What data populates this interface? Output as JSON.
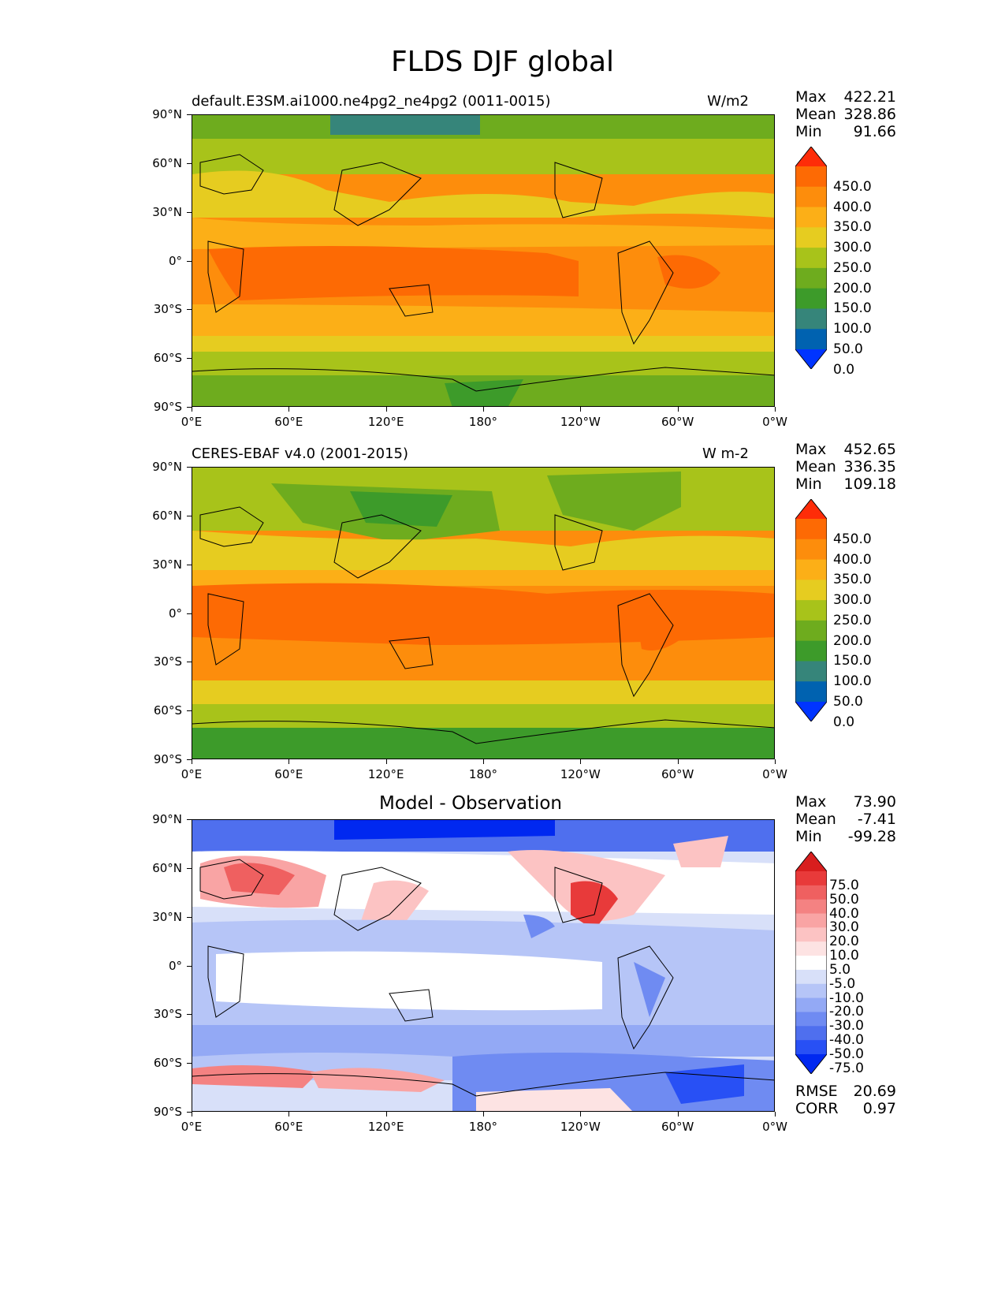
{
  "title": "FLDS DJF global",
  "axes": {
    "lat_ticks": [
      "90°N",
      "60°N",
      "30°N",
      "0°",
      "30°S",
      "60°S",
      "90°S"
    ],
    "lon_ticks": [
      "0°E",
      "60°E",
      "120°E",
      "180°",
      "120°W",
      "60°W",
      "0°W"
    ]
  },
  "panels": [
    {
      "title": "default.E3SM.ai1000.ne4pg2_ne4pg2 (0011-0015)",
      "units": "W/m2",
      "stats": {
        "max_label": "Max",
        "max": "422.21",
        "mean_label": "Mean",
        "mean": "328.86",
        "min_label": "Min",
        "min": "91.66"
      },
      "colorbar": [
        "450.0",
        "400.0",
        "350.0",
        "300.0",
        "250.0",
        "200.0",
        "150.0",
        "100.0",
        "50.0",
        "0.0"
      ]
    },
    {
      "title": "CERES-EBAF v4.0 (2001-2015)",
      "units": "W m-2",
      "stats": {
        "max_label": "Max",
        "max": "452.65",
        "mean_label": "Mean",
        "mean": "336.35",
        "min_label": "Min",
        "min": "109.18"
      },
      "colorbar": [
        "450.0",
        "400.0",
        "350.0",
        "300.0",
        "250.0",
        "200.0",
        "150.0",
        "100.0",
        "50.0",
        "0.0"
      ]
    },
    {
      "title": "Model - Observation",
      "units": "",
      "stats": {
        "max_label": "Max",
        "max": "73.90",
        "mean_label": "Mean",
        "mean": "-7.41",
        "min_label": "Min",
        "min": "-99.28"
      },
      "colorbar": [
        "75.0",
        "50.0",
        "40.0",
        "30.0",
        "20.0",
        "10.0",
        "5.0",
        "-5.0",
        "-10.0",
        "-20.0",
        "-30.0",
        "-40.0",
        "-50.0",
        "-75.0"
      ],
      "rmse_label": "RMSE",
      "rmse": "20.69",
      "corr_label": "CORR",
      "corr": "0.97"
    }
  ],
  "colors": {
    "abs_scale": [
      "#0034ff",
      "#0062b0",
      "#36857a",
      "#3d9b2a",
      "#6eac1e",
      "#a8c31a",
      "#e6cc20",
      "#fcaf17",
      "#fd8d0c",
      "#fd6a04",
      "#fe2c08"
    ],
    "diff_scale": [
      "#0028f0",
      "#2850f5",
      "#4f6fee",
      "#6f8bf2",
      "#93a9f5",
      "#b6c5f7",
      "#d8e0f9",
      "#ffffff",
      "#fde3e3",
      "#fcc3c3",
      "#f9a4a4",
      "#f48282",
      "#ef6060",
      "#e83a3a",
      "#d81e1e"
    ]
  }
}
